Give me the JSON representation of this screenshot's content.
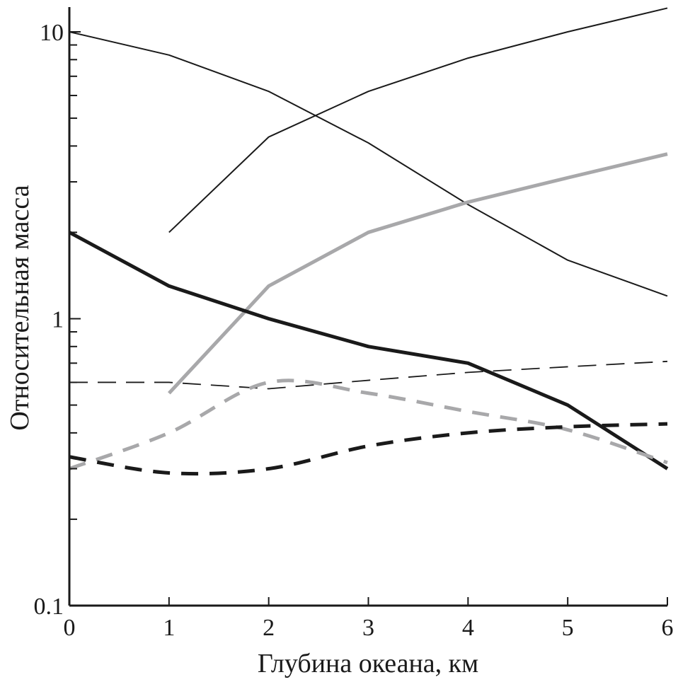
{
  "chart_data": {
    "type": "line",
    "title": "",
    "xlabel": "Глубина океана, км",
    "ylabel": "Относительная масса",
    "xlim": [
      0,
      6
    ],
    "ylim": [
      0.1,
      12.2
    ],
    "yscale": "log",
    "grid": false,
    "x_ticks": [
      "0",
      "1",
      "2",
      "3",
      "4",
      "5",
      "6"
    ],
    "y_ticks": [
      {
        "value": 0.1,
        "label": "0.1"
      },
      {
        "value": 1,
        "label": "1"
      },
      {
        "value": 10,
        "label": "10"
      }
    ],
    "series": [
      {
        "style": "thin-solid",
        "color": "#1a1a1a",
        "x": [
          0,
          1,
          2,
          3,
          4,
          5,
          6
        ],
        "values": [
          10,
          8.3,
          6.2,
          4.1,
          2.5,
          1.6,
          1.2
        ]
      },
      {
        "style": "thin-solid",
        "color": "#1a1a1a",
        "x": [
          1,
          2,
          3,
          4,
          5,
          6
        ],
        "values": [
          2.0,
          4.3,
          6.2,
          8.1,
          10,
          12.1
        ]
      },
      {
        "style": "thick-solid",
        "color": "#a8a8aa",
        "x": [
          1,
          2,
          3,
          4,
          5,
          6
        ],
        "values": [
          0.55,
          1.3,
          2.0,
          2.55,
          3.1,
          3.75
        ]
      },
      {
        "style": "thick-solid",
        "color": "#1a1a1a",
        "x": [
          0,
          1,
          2,
          3,
          4,
          5,
          6
        ],
        "values": [
          2.0,
          1.3,
          1.0,
          0.8,
          0.7,
          0.5,
          0.3
        ]
      },
      {
        "style": "thin-dashed",
        "color": "#1a1a1a",
        "x": [
          0,
          1,
          2,
          3,
          4,
          5,
          6
        ],
        "values": [
          0.6,
          0.6,
          0.57,
          0.61,
          0.65,
          0.68,
          0.71
        ]
      },
      {
        "style": "thick-dashed",
        "color": "#a8a8aa",
        "x": [
          0,
          1,
          2,
          3,
          4,
          5,
          6
        ],
        "values": [
          0.3,
          0.4,
          0.6,
          0.55,
          0.475,
          0.41,
          0.315
        ]
      },
      {
        "style": "thick-dashed",
        "color": "#1a1a1a",
        "x": [
          0,
          1,
          2,
          3,
          4,
          5,
          6
        ],
        "values": [
          0.33,
          0.29,
          0.3,
          0.36,
          0.4,
          0.42,
          0.43
        ]
      }
    ]
  }
}
